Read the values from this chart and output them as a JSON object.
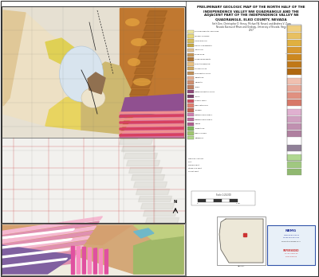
{
  "title_line1": "PRELIMINARY GEOLOGIC MAP OF THE NORTH HALF OF THE",
  "title_line2": "INDEPENDENCE VALLEY NW QUADRANGLE AND THE",
  "title_line3": "ADJACENT PART OF THE INDEPENDENCE VALLEY NE",
  "title_line4": "QUADRANGLE, ELKO COUNTY, NEVADA",
  "authors": "Seth Dee, Christopher D. Henry, Michael W. Ressel, and Andrew V. Zuza",
  "institution": "Nevada Bureau of Mines and Geology, University of Nevada, Reno",
  "year": "2017",
  "sheet_bg": "#ffffff",
  "map_upper_bg": "#e8e4d8",
  "map_lower_bg": "#f0efea",
  "map_border": "#444444",
  "map_units": {
    "pale_cream": "#f0ead8",
    "light_tan": "#e8d8b8",
    "medium_tan": "#d8c898",
    "tan_brown": "#c8a870",
    "light_yellow": "#f0e068",
    "yellow_tan": "#e0d080",
    "orange": "#d08030",
    "dark_orange": "#b86020",
    "orange_brown": "#c07030",
    "brown": "#a05828",
    "dark_brown": "#805020",
    "light_purple": "#c090b8",
    "pink_red": "#d05060",
    "mauve": "#c06880",
    "light_blue_gray": "#c8d4e0",
    "gray": "#c0c0b8",
    "hillshade": "#e8e8e4"
  },
  "cross_colors": {
    "salmon_top": "#e0a878",
    "dark_brown_base": "#7a5030",
    "purple_mid": "#8060a0",
    "pink1": "#e080a0",
    "pink2": "#f0b0c8",
    "white_stripe": "#ffffff",
    "green_right": "#a8b870",
    "olive_right": "#c0c888",
    "cyan": "#70b8c8",
    "mauve_left": "#b07090"
  },
  "legend_items": [
    {
      "color": "#f0e8a0",
      "label": "Surficial deposits, undivided"
    },
    {
      "color": "#e8d878",
      "label": "Younger alluvium"
    },
    {
      "color": "#d8c060",
      "label": "Older alluvium"
    },
    {
      "color": "#c8a840",
      "label": "Pluvial lake deposits"
    },
    {
      "color": "#e0c090",
      "label": "Colluvium"
    },
    {
      "color": "#c89858",
      "label": "Eolian sand"
    },
    {
      "color": "#b07838",
      "label": "Landslide deposits"
    },
    {
      "color": "#e8c080",
      "label": "Rhyolite flows/tuff"
    },
    {
      "color": "#d0a860",
      "label": "Volcanic rocks"
    },
    {
      "color": "#c09058",
      "label": "Sedimentary rocks"
    },
    {
      "color": "#e8b090",
      "label": "Limestone"
    },
    {
      "color": "#d09070",
      "label": "Dolomite"
    },
    {
      "color": "#c08060",
      "label": "Shale"
    },
    {
      "color": "#904878",
      "label": "Metasedimentary rocks"
    },
    {
      "color": "#784068",
      "label": "Schist"
    },
    {
      "color": "#d05060",
      "label": "Granitic rocks"
    },
    {
      "color": "#e08070",
      "label": "Mafic intrusives"
    },
    {
      "color": "#c86858",
      "label": "Diabase"
    },
    {
      "color": "#d080b0",
      "label": "Metamorphic rocks 1"
    },
    {
      "color": "#c070a0",
      "label": "Metamorphic rocks 2"
    },
    {
      "color": "#b06090",
      "label": "Gneiss"
    },
    {
      "color": "#80b860",
      "label": "Greenstone"
    },
    {
      "color": "#a0c870",
      "label": "Mafic volcanic"
    },
    {
      "color": "#b0d888",
      "label": "Ultramafic"
    }
  ],
  "strat_colors_upper": [
    "#f0d080",
    "#e8c060",
    "#e0b040",
    "#d89830",
    "#cc8820",
    "#c07818",
    "#b06810"
  ],
  "strat_colors_pink": [
    "#f0c0b0",
    "#e8a898",
    "#e09080",
    "#d87868"
  ],
  "strat_colors_purple": [
    "#e0b0d0",
    "#d0a0c0",
    "#c090b0",
    "#b080a0",
    "#a070908",
    "#908098"
  ],
  "strat_colors_green": [
    "#b0d890",
    "#a0c880",
    "#90b870"
  ],
  "nevada_fill": "#f0ead8",
  "nevada_border": "#555555",
  "nevada_red": "#cc3333"
}
